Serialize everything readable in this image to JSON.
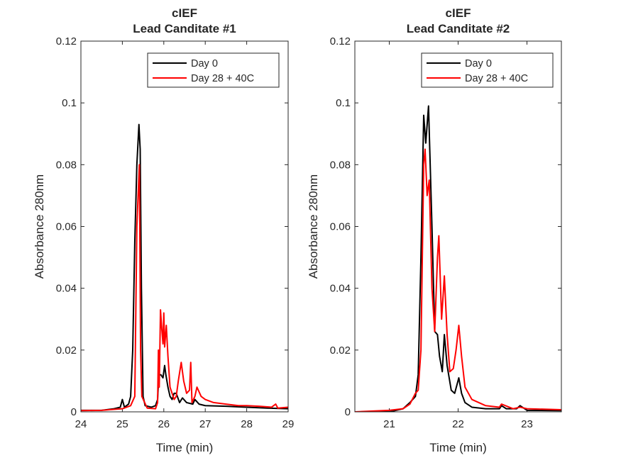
{
  "chart_data": [
    {
      "type": "line",
      "title": [
        "cIEF",
        "Lead Canditate #1"
      ],
      "xlabel": "Time (min)",
      "ylabel": "Absorbance 280nm",
      "xlim": [
        24,
        29
      ],
      "ylim": [
        0,
        0.12
      ],
      "xticks": [
        "24",
        "25",
        "26",
        "27",
        "28",
        "29"
      ],
      "yticks": [
        "0",
        "0.02",
        "0.04",
        "0.06",
        "0.08",
        "0.1",
        "0.12"
      ],
      "legend": "top-right",
      "series": [
        {
          "name": "Day 0",
          "color": "#000000",
          "points": [
            [
              24.0,
              0.0005
            ],
            [
              24.5,
              0.0005
            ],
            [
              24.8,
              0.001
            ],
            [
              24.95,
              0.0015
            ],
            [
              25.0,
              0.004
            ],
            [
              25.05,
              0.0015
            ],
            [
              25.1,
              0.002
            ],
            [
              25.15,
              0.0025
            ],
            [
              25.2,
              0.005
            ],
            [
              25.25,
              0.02
            ],
            [
              25.3,
              0.055
            ],
            [
              25.35,
              0.08
            ],
            [
              25.4,
              0.093
            ],
            [
              25.43,
              0.085
            ],
            [
              25.46,
              0.04
            ],
            [
              25.5,
              0.005
            ],
            [
              25.55,
              0.002
            ],
            [
              25.7,
              0.0015
            ],
            [
              25.8,
              0.002
            ],
            [
              25.85,
              0.004
            ],
            [
              25.88,
              0.012
            ],
            [
              25.93,
              0.012
            ],
            [
              25.98,
              0.011
            ],
            [
              26.02,
              0.015
            ],
            [
              26.05,
              0.012
            ],
            [
              26.1,
              0.008
            ],
            [
              26.15,
              0.005
            ],
            [
              26.2,
              0.004
            ],
            [
              26.25,
              0.006
            ],
            [
              26.3,
              0.006
            ],
            [
              26.38,
              0.003
            ],
            [
              26.45,
              0.0045
            ],
            [
              26.55,
              0.003
            ],
            [
              26.7,
              0.0025
            ],
            [
              26.75,
              0.004
            ],
            [
              26.85,
              0.0025
            ],
            [
              27.0,
              0.002
            ],
            [
              27.5,
              0.0018
            ],
            [
              28.0,
              0.0015
            ],
            [
              28.5,
              0.0012
            ],
            [
              29.0,
              0.001
            ]
          ]
        },
        {
          "name": "Day 28 + 40C",
          "color": "#ff0000",
          "points": [
            [
              24.0,
              0.0004
            ],
            [
              24.5,
              0.0005
            ],
            [
              24.8,
              0.0008
            ],
            [
              25.0,
              0.001
            ],
            [
              25.2,
              0.002
            ],
            [
              25.3,
              0.005
            ],
            [
              25.35,
              0.06
            ],
            [
              25.38,
              0.07
            ],
            [
              25.41,
              0.08
            ],
            [
              25.44,
              0.02
            ],
            [
              25.47,
              0.005
            ],
            [
              25.6,
              0.0012
            ],
            [
              25.8,
              0.001
            ],
            [
              25.85,
              0.003
            ],
            [
              25.87,
              0.02
            ],
            [
              25.89,
              0.008
            ],
            [
              25.92,
              0.033
            ],
            [
              25.95,
              0.027
            ],
            [
              25.98,
              0.022
            ],
            [
              26.0,
              0.032
            ],
            [
              26.02,
              0.021
            ],
            [
              26.06,
              0.028
            ],
            [
              26.1,
              0.018
            ],
            [
              26.15,
              0.008
            ],
            [
              26.25,
              0.004
            ],
            [
              26.3,
              0.005
            ],
            [
              26.35,
              0.01
            ],
            [
              26.42,
              0.016
            ],
            [
              26.48,
              0.01
            ],
            [
              26.55,
              0.006
            ],
            [
              26.62,
              0.007
            ],
            [
              26.65,
              0.016
            ],
            [
              26.68,
              0.003
            ],
            [
              26.75,
              0.005
            ],
            [
              26.8,
              0.008
            ],
            [
              26.9,
              0.005
            ],
            [
              27.0,
              0.004
            ],
            [
              27.2,
              0.003
            ],
            [
              27.5,
              0.0025
            ],
            [
              27.8,
              0.002
            ],
            [
              28.0,
              0.002
            ],
            [
              28.3,
              0.0018
            ],
            [
              28.6,
              0.0015
            ],
            [
              28.7,
              0.0025
            ],
            [
              28.75,
              0.0012
            ],
            [
              29.0,
              0.0015
            ]
          ]
        }
      ]
    },
    {
      "type": "line",
      "title": [
        "cIEF",
        "Lead Canditate #2"
      ],
      "xlabel": "Time (min)",
      "ylabel": "Absorbance 280nm",
      "xlim": [
        20.5,
        23.5
      ],
      "ylim": [
        0,
        0.12
      ],
      "xticks": [
        "21",
        "22",
        "23"
      ],
      "yticks": [
        "0",
        "0.02",
        "0.04",
        "0.06",
        "0.08",
        "0.1",
        "0.12"
      ],
      "legend": "top-right",
      "series": [
        {
          "name": "Day 0",
          "color": "#000000",
          "points": [
            [
              20.5,
              0.0
            ],
            [
              21.0,
              0.0
            ],
            [
              21.2,
              0.001
            ],
            [
              21.3,
              0.003
            ],
            [
              21.38,
              0.005
            ],
            [
              21.42,
              0.012
            ],
            [
              21.46,
              0.05
            ],
            [
              21.5,
              0.096
            ],
            [
              21.53,
              0.087
            ],
            [
              21.57,
              0.099
            ],
            [
              21.62,
              0.06
            ],
            [
              21.66,
              0.026
            ],
            [
              21.7,
              0.025
            ],
            [
              21.73,
              0.018
            ],
            [
              21.77,
              0.013
            ],
            [
              21.8,
              0.025
            ],
            [
              21.84,
              0.015
            ],
            [
              21.9,
              0.007
            ],
            [
              21.95,
              0.006
            ],
            [
              22.01,
              0.011
            ],
            [
              22.05,
              0.006
            ],
            [
              22.1,
              0.003
            ],
            [
              22.2,
              0.0015
            ],
            [
              22.4,
              0.001
            ],
            [
              22.6,
              0.001
            ],
            [
              22.63,
              0.002
            ],
            [
              22.7,
              0.001
            ],
            [
              22.85,
              0.001
            ],
            [
              22.9,
              0.002
            ],
            [
              23.0,
              0.0005
            ],
            [
              23.5,
              0.0004
            ]
          ]
        },
        {
          "name": "Day 28 + 40C",
          "color": "#ff0000",
          "points": [
            [
              20.5,
              0.0
            ],
            [
              21.0,
              0.0005
            ],
            [
              21.2,
              0.001
            ],
            [
              21.3,
              0.0025
            ],
            [
              21.38,
              0.006
            ],
            [
              21.42,
              0.007
            ],
            [
              21.46,
              0.02
            ],
            [
              21.5,
              0.08
            ],
            [
              21.52,
              0.085
            ],
            [
              21.55,
              0.07
            ],
            [
              21.58,
              0.075
            ],
            [
              21.62,
              0.04
            ],
            [
              21.66,
              0.026
            ],
            [
              21.7,
              0.05
            ],
            [
              21.72,
              0.057
            ],
            [
              21.76,
              0.03
            ],
            [
              21.8,
              0.044
            ],
            [
              21.84,
              0.025
            ],
            [
              21.88,
              0.013
            ],
            [
              21.93,
              0.014
            ],
            [
              21.97,
              0.02
            ],
            [
              22.01,
              0.028
            ],
            [
              22.05,
              0.018
            ],
            [
              22.1,
              0.008
            ],
            [
              22.2,
              0.004
            ],
            [
              22.3,
              0.003
            ],
            [
              22.4,
              0.002
            ],
            [
              22.6,
              0.0015
            ],
            [
              22.63,
              0.0025
            ],
            [
              22.8,
              0.001
            ],
            [
              22.9,
              0.0015
            ],
            [
              23.0,
              0.001
            ],
            [
              23.5,
              0.0007
            ]
          ]
        }
      ]
    }
  ]
}
